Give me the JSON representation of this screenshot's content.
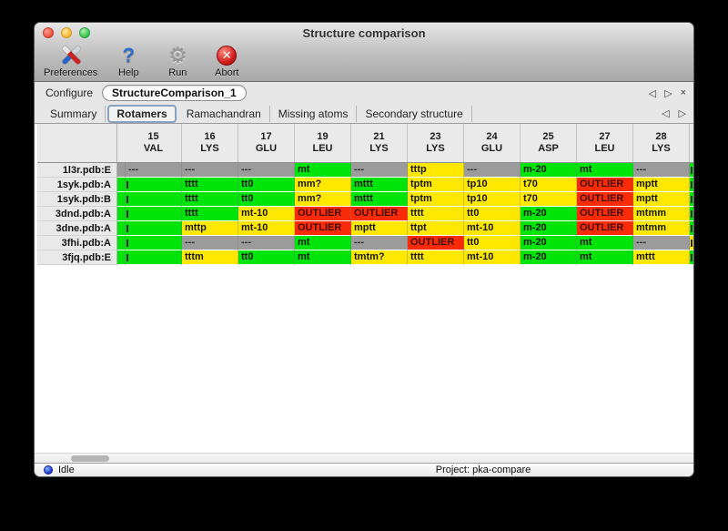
{
  "window": {
    "title": "Structure comparison"
  },
  "toolbar": {
    "items": [
      {
        "id": "preferences",
        "label": "Preferences",
        "icon": "tools-icon"
      },
      {
        "id": "help",
        "label": "Help",
        "icon": "question-icon"
      },
      {
        "id": "run",
        "label": "Run",
        "icon": "gear-icon"
      },
      {
        "id": "abort",
        "label": "Abort",
        "icon": "abort-icon"
      }
    ],
    "gear_glyph": "⚙",
    "question_glyph": "?",
    "abort_glyph": "✕"
  },
  "configure": {
    "label": "Configure",
    "value": "StructureComparison_1",
    "prev_arrow": "◁",
    "next_arrow": "▷",
    "close_glyph": "×"
  },
  "tabs": {
    "items": [
      {
        "label": "Summary",
        "selected": false
      },
      {
        "label": "Rotamers",
        "selected": true
      },
      {
        "label": "Ramachandran",
        "selected": false
      },
      {
        "label": "Missing atoms",
        "selected": false
      },
      {
        "label": "Secondary structure",
        "selected": false
      }
    ],
    "prev_arrow": "◁",
    "next_arrow": "▷"
  },
  "colors": {
    "green": "#00e40a",
    "yellow": "#ffe800",
    "red": "#fb2b07",
    "gray": "#9b9b9b"
  },
  "table": {
    "columns": [
      {
        "num": "15",
        "res": "VAL"
      },
      {
        "num": "16",
        "res": "LYS"
      },
      {
        "num": "17",
        "res": "GLU"
      },
      {
        "num": "19",
        "res": "LEU"
      },
      {
        "num": "21",
        "res": "LYS"
      },
      {
        "num": "23",
        "res": "LYS"
      },
      {
        "num": "24",
        "res": "GLU"
      },
      {
        "num": "25",
        "res": "ASP"
      },
      {
        "num": "27",
        "res": "LEU"
      },
      {
        "num": "28",
        "res": "LYS"
      }
    ],
    "rows": [
      {
        "label": "1l3r.pdb:E",
        "left_clip": "gray",
        "right_clip": "green",
        "cells": [
          {
            "t": "---",
            "c": "gray"
          },
          {
            "t": "---",
            "c": "gray"
          },
          {
            "t": "---",
            "c": "gray"
          },
          {
            "t": "mt",
            "c": "green"
          },
          {
            "t": "---",
            "c": "gray"
          },
          {
            "t": "tttp",
            "c": "yellow"
          },
          {
            "t": "---",
            "c": "gray"
          },
          {
            "t": "m-20",
            "c": "green"
          },
          {
            "t": "mt",
            "c": "green"
          },
          {
            "t": "---",
            "c": "gray"
          }
        ]
      },
      {
        "label": "1syk.pdb:A",
        "left_clip": "green",
        "right_clip": "green",
        "cells": [
          {
            "t": "",
            "c": "green",
            "clip": true
          },
          {
            "t": "tttt",
            "c": "green"
          },
          {
            "t": "tt0",
            "c": "green"
          },
          {
            "t": "mm?",
            "c": "yellow"
          },
          {
            "t": "mttt",
            "c": "green"
          },
          {
            "t": "tptm",
            "c": "yellow"
          },
          {
            "t": "tp10",
            "c": "yellow"
          },
          {
            "t": "t70",
            "c": "yellow"
          },
          {
            "t": "OUTLIER",
            "c": "red"
          },
          {
            "t": "mptt",
            "c": "yellow"
          }
        ]
      },
      {
        "label": "1syk.pdb:B",
        "left_clip": "green",
        "right_clip": "green",
        "cells": [
          {
            "t": "",
            "c": "green",
            "clip": true
          },
          {
            "t": "tttt",
            "c": "green"
          },
          {
            "t": "tt0",
            "c": "green"
          },
          {
            "t": "mm?",
            "c": "yellow"
          },
          {
            "t": "mttt",
            "c": "green"
          },
          {
            "t": "tptm",
            "c": "yellow"
          },
          {
            "t": "tp10",
            "c": "yellow"
          },
          {
            "t": "t70",
            "c": "yellow"
          },
          {
            "t": "OUTLIER",
            "c": "red"
          },
          {
            "t": "mptt",
            "c": "yellow"
          }
        ]
      },
      {
        "label": "3dnd.pdb:A",
        "left_clip": "green",
        "right_clip": "green",
        "cells": [
          {
            "t": "",
            "c": "green",
            "clip": true
          },
          {
            "t": "tttt",
            "c": "green"
          },
          {
            "t": "mt-10",
            "c": "yellow"
          },
          {
            "t": "OUTLIER",
            "c": "red"
          },
          {
            "t": "OUTLIER",
            "c": "red"
          },
          {
            "t": "tttt",
            "c": "yellow"
          },
          {
            "t": "tt0",
            "c": "yellow"
          },
          {
            "t": "m-20",
            "c": "green"
          },
          {
            "t": "OUTLIER",
            "c": "red"
          },
          {
            "t": "mtmm",
            "c": "yellow"
          }
        ]
      },
      {
        "label": "3dne.pdb:A",
        "left_clip": "green",
        "right_clip": "green",
        "cells": [
          {
            "t": "",
            "c": "green",
            "clip": true
          },
          {
            "t": "mttp",
            "c": "yellow"
          },
          {
            "t": "mt-10",
            "c": "yellow"
          },
          {
            "t": "OUTLIER",
            "c": "red"
          },
          {
            "t": "mptt",
            "c": "yellow"
          },
          {
            "t": "ttpt",
            "c": "yellow"
          },
          {
            "t": "mt-10",
            "c": "yellow"
          },
          {
            "t": "m-20",
            "c": "green"
          },
          {
            "t": "OUTLIER",
            "c": "red"
          },
          {
            "t": "mtmm",
            "c": "yellow"
          }
        ]
      },
      {
        "label": "3fhi.pdb:A",
        "left_clip": "green",
        "right_clip": "yellow",
        "cells": [
          {
            "t": "",
            "c": "green",
            "clip": true
          },
          {
            "t": "---",
            "c": "gray"
          },
          {
            "t": "---",
            "c": "gray"
          },
          {
            "t": "mt",
            "c": "green"
          },
          {
            "t": "---",
            "c": "gray"
          },
          {
            "t": "OUTLIER",
            "c": "red"
          },
          {
            "t": "tt0",
            "c": "yellow"
          },
          {
            "t": "m-20",
            "c": "green"
          },
          {
            "t": "mt",
            "c": "green"
          },
          {
            "t": "---",
            "c": "gray"
          }
        ]
      },
      {
        "label": "3fjq.pdb:E",
        "left_clip": "green",
        "right_clip": "green",
        "cells": [
          {
            "t": "",
            "c": "green",
            "clip": true
          },
          {
            "t": "tttm",
            "c": "yellow"
          },
          {
            "t": "tt0",
            "c": "green"
          },
          {
            "t": "mt",
            "c": "green"
          },
          {
            "t": "tmtm?",
            "c": "yellow"
          },
          {
            "t": "tttt",
            "c": "yellow"
          },
          {
            "t": "mt-10",
            "c": "yellow"
          },
          {
            "t": "m-20",
            "c": "green"
          },
          {
            "t": "mt",
            "c": "green"
          },
          {
            "t": "mttt",
            "c": "yellow"
          }
        ]
      }
    ]
  },
  "statusbar": {
    "status": "Idle",
    "project": "Project: pka-compare"
  }
}
